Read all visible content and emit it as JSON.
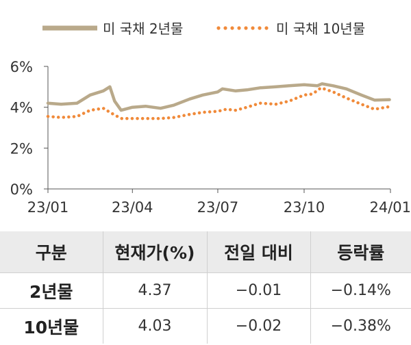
{
  "chart_data": {
    "type": "line",
    "x_ticks": [
      "23/01",
      "23/04",
      "23/07",
      "23/10",
      "24/01"
    ],
    "y_ticks": [
      "0%",
      "2%",
      "4%",
      "6%"
    ],
    "ylim": [
      0,
      6
    ],
    "xlim": [
      "2023-01-01",
      "2024-01-01"
    ],
    "grid": false,
    "legend_position": "top",
    "series": [
      {
        "name": "미 국채 2년물",
        "style": "solid",
        "color": "#b9a98a",
        "x": [
          "2023-01-01",
          "2023-01-15",
          "2023-02-01",
          "2023-02-15",
          "2023-03-01",
          "2023-03-08",
          "2023-03-13",
          "2023-03-20",
          "2023-04-01",
          "2023-04-15",
          "2023-05-01",
          "2023-05-15",
          "2023-06-01",
          "2023-06-15",
          "2023-07-01",
          "2023-07-06",
          "2023-07-20",
          "2023-08-01",
          "2023-08-15",
          "2023-09-01",
          "2023-09-15",
          "2023-10-01",
          "2023-10-15",
          "2023-10-20",
          "2023-11-01",
          "2023-11-15",
          "2023-12-01",
          "2023-12-15",
          "2023-12-31"
        ],
        "values": [
          4.2,
          4.15,
          4.2,
          4.6,
          4.8,
          5.0,
          4.3,
          3.85,
          4.0,
          4.05,
          3.95,
          4.1,
          4.4,
          4.6,
          4.75,
          4.9,
          4.8,
          4.85,
          4.95,
          5.0,
          5.05,
          5.1,
          5.05,
          5.15,
          5.05,
          4.9,
          4.6,
          4.35,
          4.37
        ]
      },
      {
        "name": "미 국채 10년물",
        "style": "dotted",
        "color": "#f08a3a",
        "x": [
          "2023-01-01",
          "2023-01-15",
          "2023-02-01",
          "2023-02-15",
          "2023-03-01",
          "2023-03-10",
          "2023-03-20",
          "2023-04-01",
          "2023-04-15",
          "2023-05-01",
          "2023-05-15",
          "2023-06-01",
          "2023-06-15",
          "2023-07-01",
          "2023-07-10",
          "2023-07-20",
          "2023-08-01",
          "2023-08-15",
          "2023-09-01",
          "2023-09-15",
          "2023-10-01",
          "2023-10-10",
          "2023-10-19",
          "2023-11-01",
          "2023-11-15",
          "2023-12-01",
          "2023-12-15",
          "2023-12-31"
        ],
        "values": [
          3.55,
          3.5,
          3.55,
          3.85,
          3.95,
          3.7,
          3.45,
          3.45,
          3.45,
          3.45,
          3.5,
          3.65,
          3.75,
          3.8,
          3.9,
          3.85,
          4.0,
          4.2,
          4.15,
          4.3,
          4.6,
          4.65,
          4.95,
          4.75,
          4.45,
          4.15,
          3.9,
          4.03
        ]
      }
    ]
  },
  "table": {
    "headers": [
      "구분",
      "현재가(%)",
      "전일 대비",
      "등락률"
    ],
    "rows": [
      [
        "2년물",
        "4.37",
        "−0.01",
        "−0.14%"
      ],
      [
        "10년물",
        "4.03",
        "−0.02",
        "−0.38%"
      ]
    ]
  }
}
